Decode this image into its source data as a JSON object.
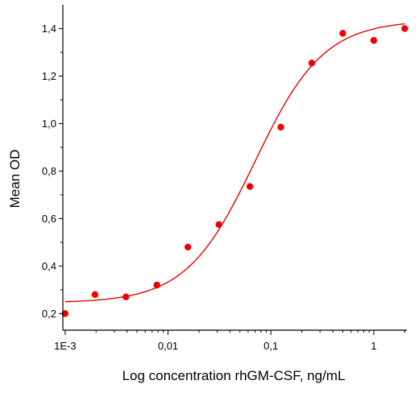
{
  "chart_data": {
    "type": "scatter",
    "xlabel": "Log concentration rhGM-CSF, ng/mL",
    "ylabel": "Mean OD",
    "x_scale": "log",
    "xlim": [
      0.00095,
      2.1
    ],
    "ylim": [
      0.13,
      1.5
    ],
    "x_ticks": [
      {
        "value": 0.001,
        "label": "1E-3"
      },
      {
        "value": 0.01,
        "label": "0,01"
      },
      {
        "value": 0.1,
        "label": "0,1"
      },
      {
        "value": 1,
        "label": "1"
      }
    ],
    "y_ticks": [
      {
        "value": 0.2,
        "label": "0,2"
      },
      {
        "value": 0.4,
        "label": "0,4"
      },
      {
        "value": 0.6,
        "label": "0,6"
      },
      {
        "value": 0.8,
        "label": "0,8"
      },
      {
        "value": 1.0,
        "label": "1,0"
      },
      {
        "value": 1.2,
        "label": "1,2"
      },
      {
        "value": 1.4,
        "label": "1,4"
      }
    ],
    "grid": false,
    "series": [
      {
        "type": "scatter",
        "color": "#ee0000",
        "x": [
          0.001,
          0.00195,
          0.0039,
          0.0078,
          0.0156,
          0.03125,
          0.0625,
          0.125,
          0.25,
          0.5,
          1,
          2
        ],
        "y": [
          0.2,
          0.28,
          0.27,
          0.32,
          0.48,
          0.575,
          0.735,
          0.985,
          1.255,
          1.38,
          1.35,
          1.4
        ]
      },
      {
        "type": "line",
        "color": "#ee0000",
        "fit": "four-parameter logistic",
        "bottom": 0.245,
        "top": 1.435,
        "ec50": 0.07,
        "hill": 1.3
      }
    ]
  }
}
